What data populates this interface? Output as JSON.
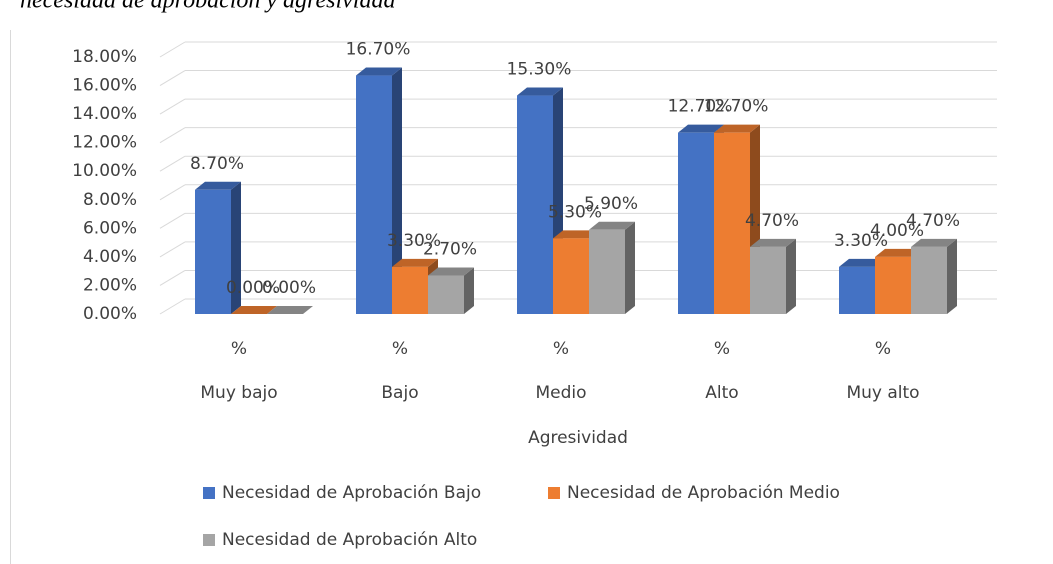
{
  "chart_data": {
    "type": "bar3d",
    "title": "necesidad de aprobación y agresividad",
    "x_label": "Agresividad",
    "categories": [
      "Muy bajo",
      "Bajo",
      "Medio",
      "Alto",
      "Muy alto"
    ],
    "subcategories": [
      "%",
      "%",
      "%",
      "%",
      "%"
    ],
    "series": [
      {
        "name": "Necesidad de Aprobación Bajo",
        "color": "#4472c4",
        "values": [
          8.7,
          16.7,
          15.3,
          12.7,
          3.3
        ],
        "value_labels": [
          "8.70%",
          "16.70%",
          "15.30%",
          "12.70%",
          "3.30%"
        ]
      },
      {
        "name": "Necesidad de Aprobación Medio",
        "color": "#ed7d31",
        "values": [
          0,
          3.3,
          5.3,
          12.7,
          4.0
        ],
        "value_labels": [
          "0.00%",
          "3.30%",
          "5.30%",
          "12.70%",
          "4.00%"
        ]
      },
      {
        "name": "Necesidad de Aprobación Alto",
        "color": "#a5a5a5",
        "values": [
          0,
          2.7,
          5.9,
          4.7,
          4.7
        ],
        "value_labels": [
          "0.00%",
          "2.70%",
          "5.90%",
          "4.70%",
          "4.70%"
        ]
      }
    ],
    "ylim": [
      0,
      18
    ],
    "yticks": [
      {
        "value": 0,
        "label": "0.00%"
      },
      {
        "value": 2,
        "label": "2.00%"
      },
      {
        "value": 4,
        "label": "4.00%"
      },
      {
        "value": 6,
        "label": "6.00%"
      },
      {
        "value": 8,
        "label": "8.00%"
      },
      {
        "value": 10,
        "label": "10.00%"
      },
      {
        "value": 12,
        "label": "12.00%"
      },
      {
        "value": 14,
        "label": "14.00%"
      },
      {
        "value": 16,
        "label": "16.00%"
      },
      {
        "value": 18,
        "label": "18.00%"
      }
    ],
    "grid": true,
    "legend": "bottom"
  }
}
